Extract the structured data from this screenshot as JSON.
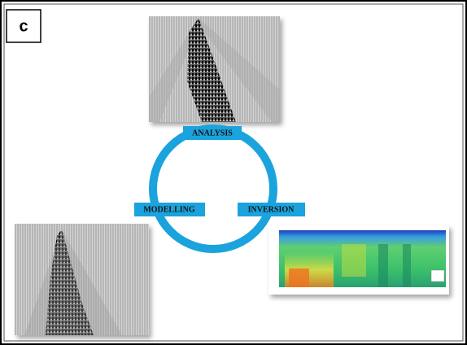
{
  "panel_label": "c",
  "nodes": [
    {
      "label": "ANALYSIS"
    },
    {
      "label": "MODELLING"
    },
    {
      "label": "INVERSION"
    }
  ]
}
